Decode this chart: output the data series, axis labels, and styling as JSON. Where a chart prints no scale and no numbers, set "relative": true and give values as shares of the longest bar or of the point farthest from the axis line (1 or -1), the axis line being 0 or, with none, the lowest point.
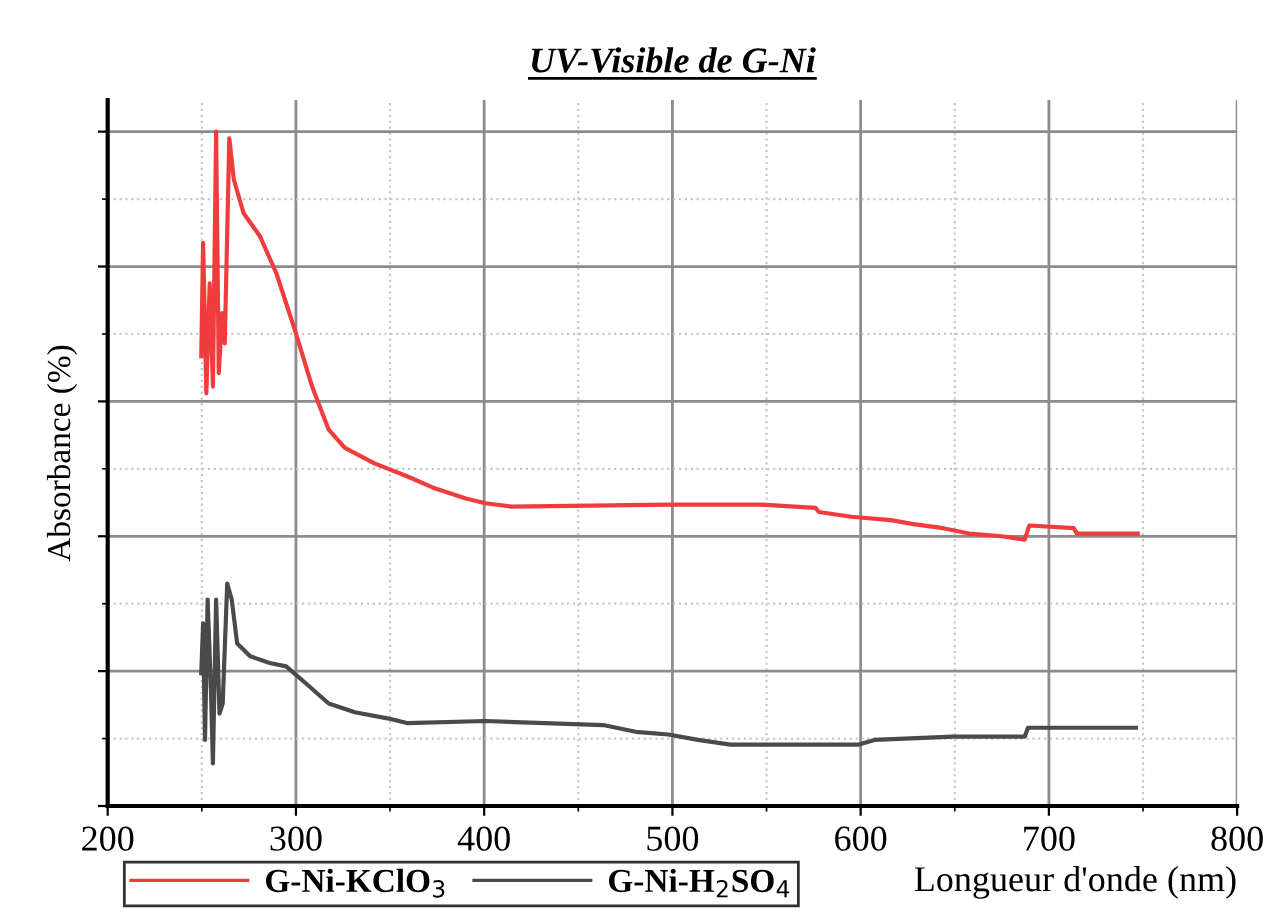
{
  "chart_data": {
    "type": "line",
    "title": "UV-Visible de G-Ni",
    "xlabel": "Longueur d'onde (nm)",
    "ylabel": "Absorbance (%)",
    "relative": true,
    "xlim": [
      200,
      800
    ],
    "xticks": [
      200,
      300,
      400,
      500,
      600,
      700,
      800
    ],
    "grid": true,
    "legend": "bottom left",
    "line_style": "solid",
    "marker": "none",
    "series": [
      {
        "name": "G-Ni-KClO$_{3}$",
        "color": "#f03c3c",
        "x": [
          249.7,
          250.7,
          252.4,
          254.2,
          255.9,
          257.6,
          259,
          260.8,
          262.2,
          264.6,
          267,
          272.2,
          280.9,
          289.6,
          300,
          308.6,
          317.4,
          326,
          341.7,
          359,
          372.9,
          390.3,
          400.7,
          414.6,
          497.9,
          546.5,
          576,
          577.8,
          595,
          616,
          628.1,
          643.8,
          657.6,
          675,
          687.2,
          689.6,
          713.2,
          714.9,
          747.2
        ],
        "values": [
          0.667,
          0.835,
          0.612,
          0.775,
          0.622,
          1,
          0.642,
          0.731,
          0.686,
          0.99,
          0.929,
          0.879,
          0.845,
          0.79,
          0.701,
          0.622,
          0.558,
          0.531,
          0.508,
          0.489,
          0.472,
          0.456,
          0.449,
          0.444,
          0.447,
          0.447,
          0.442,
          0.436,
          0.429,
          0.424,
          0.418,
          0.412,
          0.404,
          0.4,
          0.395,
          0.416,
          0.412,
          0.404,
          0.404
        ]
      },
      {
        "name": "G-Ni-H$_{2}$SO$_{4}$",
        "color": "#4a4a4a",
        "x": [
          249.7,
          250.7,
          251.7,
          253.1,
          254.9,
          255.9,
          257.6,
          259.4,
          261.1,
          263.5,
          265.9,
          268.8,
          275.7,
          286.1,
          294.8,
          305.2,
          317.4,
          331.3,
          348.6,
          359,
          400.7,
          463.2,
          480.5,
          497.9,
          513.5,
          530.9,
          598.6,
          607.3,
          649,
          687.2,
          688.9,
          746.2
        ],
        "values": [
          0.197,
          0.271,
          0.098,
          0.306,
          0.167,
          0.063,
          0.306,
          0.137,
          0.152,
          0.33,
          0.306,
          0.241,
          0.222,
          0.212,
          0.207,
          0.182,
          0.152,
          0.139,
          0.13,
          0.123,
          0.126,
          0.12,
          0.11,
          0.106,
          0.098,
          0.091,
          0.091,
          0.098,
          0.103,
          0.103,
          0.116,
          0.116
        ]
      }
    ]
  }
}
